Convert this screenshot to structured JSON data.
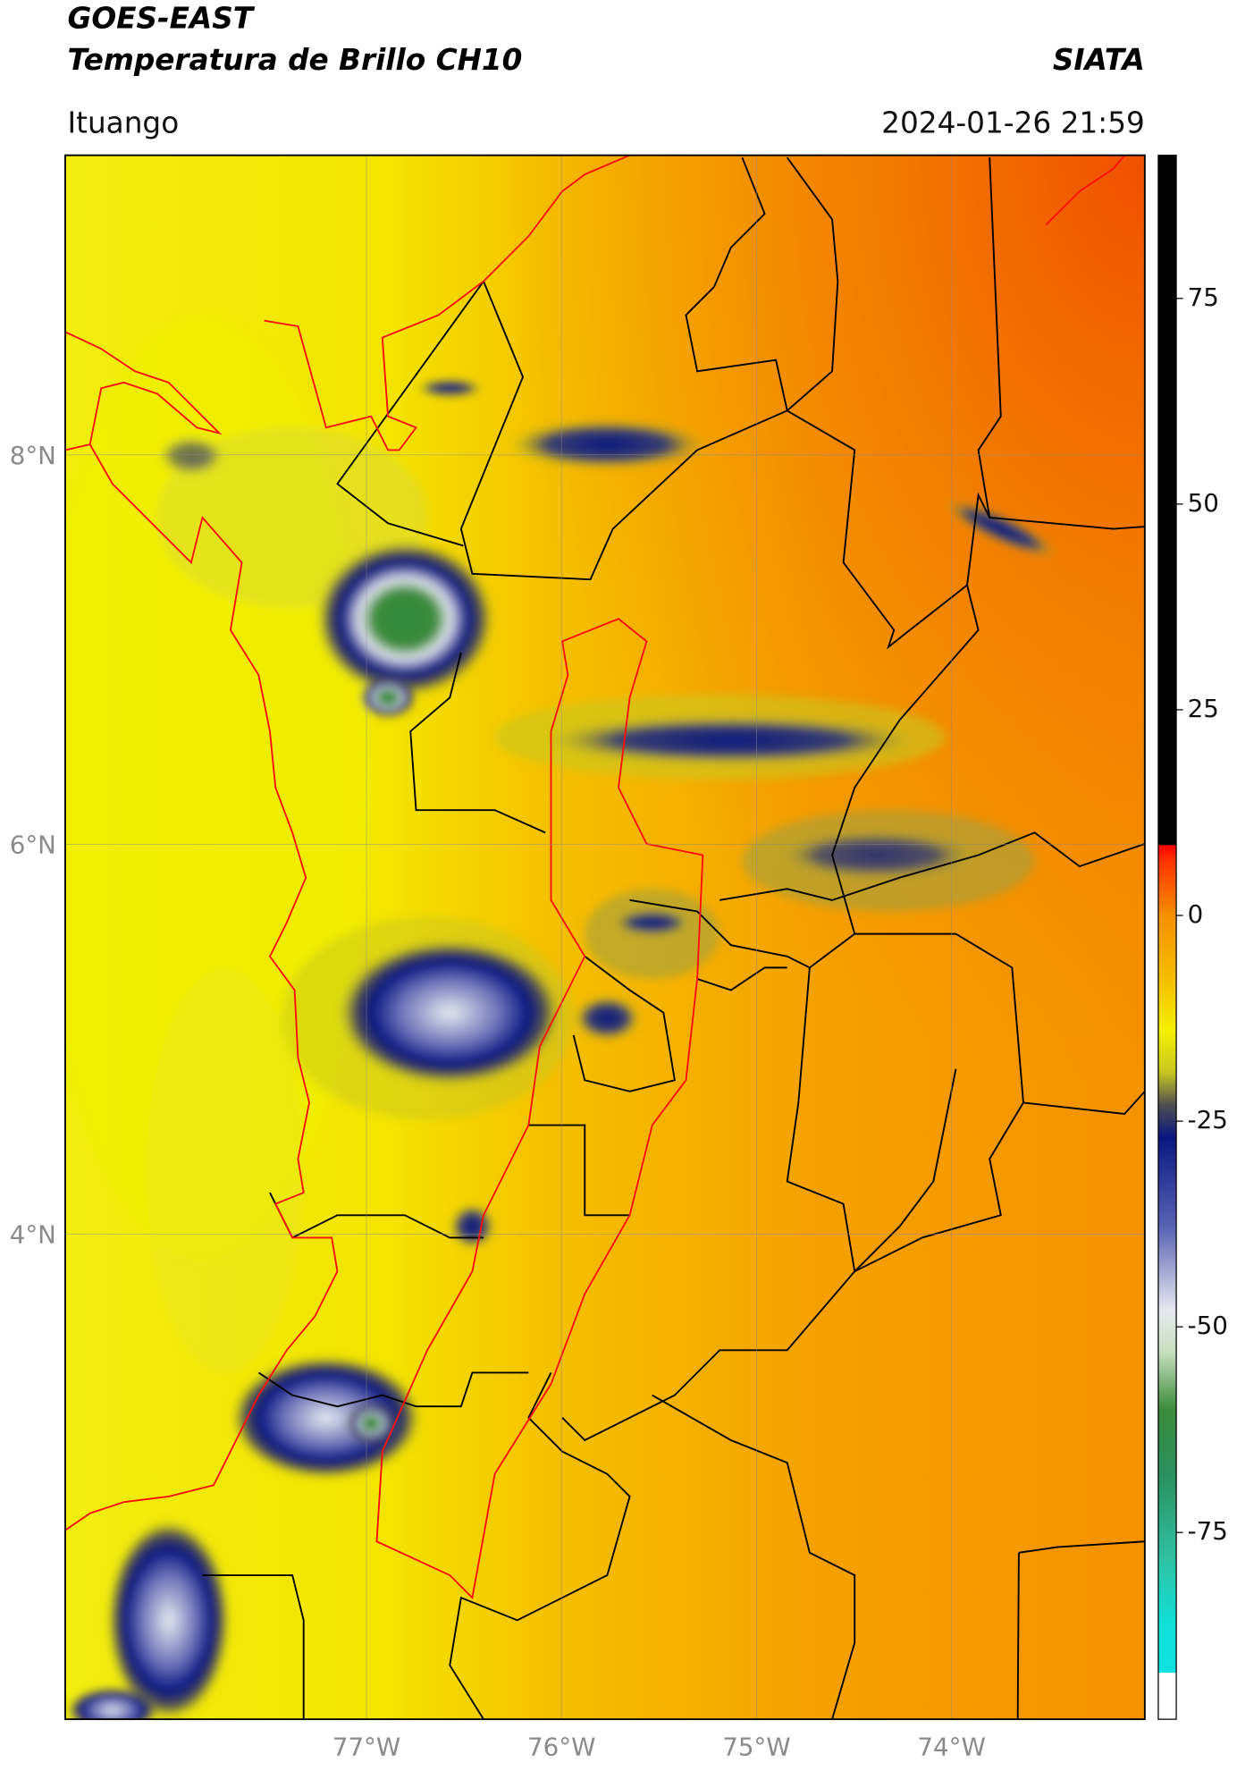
{
  "header": {
    "title_line1": "GOES-EAST",
    "title_line2": "Temperatura de Brillo CH10",
    "organization": "SIATA",
    "location": "Ituango",
    "datetime": "2024-01-26 21:59"
  },
  "map": {
    "xlim": [
      -78.545,
      -73.009
    ],
    "ylim": [
      1.509,
      9.538
    ],
    "xticks": [
      {
        "value": -77,
        "label": "77°W"
      },
      {
        "value": -76,
        "label": "76°W"
      },
      {
        "value": -75,
        "label": "75°W"
      },
      {
        "value": -74,
        "label": "74°W"
      }
    ],
    "yticks": [
      {
        "value": 4,
        "label": "4°N"
      },
      {
        "value": 6,
        "label": "6°N"
      },
      {
        "value": 8,
        "label": "8°N"
      }
    ],
    "grid": true
  },
  "colorbar": {
    "lim": [
      -97.7,
      92.4
    ],
    "ticks": [
      -75,
      -50,
      -25,
      0,
      25,
      50,
      75
    ],
    "colors": [
      {
        "value": 92.4,
        "color": "#000000"
      },
      {
        "value": 8.6,
        "color": "#000000"
      },
      {
        "value": 8.5,
        "color": "#ff0000"
      },
      {
        "value": 6.8,
        "color": "#ff3000"
      },
      {
        "value": 0,
        "color": "#f59000"
      },
      {
        "value": -8,
        "color": "#f5c000"
      },
      {
        "value": -14,
        "color": "#f5f000"
      },
      {
        "value": -19,
        "color": "#c8c820"
      },
      {
        "value": -23,
        "color": "#505050"
      },
      {
        "value": -27,
        "color": "#0a1680"
      },
      {
        "value": -38,
        "color": "#5a64b4"
      },
      {
        "value": -48,
        "color": "#e8e8f0"
      },
      {
        "value": -53,
        "color": "#c8e0c0"
      },
      {
        "value": -60,
        "color": "#3c8c3c"
      },
      {
        "value": -68,
        "color": "#2a9060"
      },
      {
        "value": -78,
        "color": "#30c0a0"
      },
      {
        "value": -86,
        "color": "#10e0d8"
      },
      {
        "value": -92,
        "color": "#10e0e0"
      },
      {
        "value": -92.1,
        "color": "#ffffff"
      },
      {
        "value": -97.7,
        "color": "#ffffff"
      }
    ]
  }
}
